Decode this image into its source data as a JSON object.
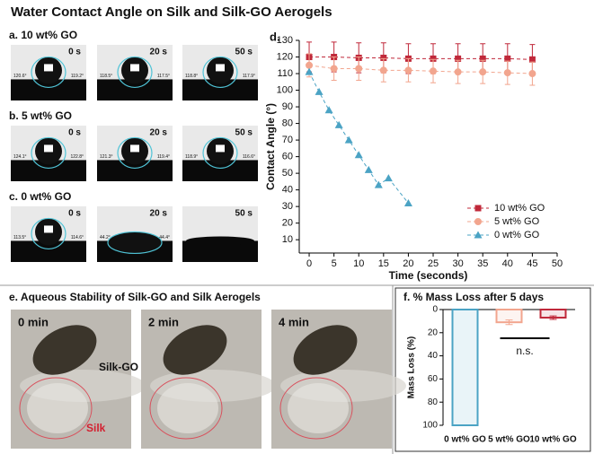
{
  "title": "Water Contact Angle on Silk and Silk-GO Aerogels",
  "contact_rows": [
    {
      "label": "a. 10 wt% GO",
      "photos": [
        {
          "time": "0 s",
          "left": "120.6°",
          "right": "119.2°"
        },
        {
          "time": "20 s",
          "left": "118.5°",
          "right": "117.5°"
        },
        {
          "time": "50 s",
          "left": "118.8°",
          "right": "117.9°"
        }
      ]
    },
    {
      "label": "b. 5 wt% GO",
      "photos": [
        {
          "time": "0 s",
          "left": "124.1°",
          "right": "122.8°"
        },
        {
          "time": "20 s",
          "left": "121.3°",
          "right": "119.4°"
        },
        {
          "time": "50 s",
          "left": "118.9°",
          "right": "116.6°"
        }
      ]
    },
    {
      "label": "c. 0 wt% GO",
      "photos": [
        {
          "time": "0 s",
          "left": "113.5°",
          "right": "114.6°"
        },
        {
          "time": "20 s",
          "left": "44.2°",
          "right": "44.4°"
        },
        {
          "time": "50 s"
        }
      ]
    }
  ],
  "stability": {
    "title": "e. Aqueous Stability of Silk-GO and Silk Aerogels",
    "photos": [
      "0 min",
      "2 min",
      "4 min"
    ],
    "silk_go": "Silk-GO",
    "silk": "Silk"
  },
  "chart_data": [
    {
      "type": "line",
      "title": "d.",
      "xlabel": "Time (seconds)",
      "ylabel": "Contact Angle (°)",
      "xlim": [
        -2,
        50
      ],
      "ylim": [
        2,
        130
      ],
      "xticks": [
        0,
        5,
        10,
        15,
        20,
        25,
        30,
        35,
        40,
        45,
        50
      ],
      "yticks": [
        10,
        20,
        30,
        40,
        50,
        60,
        70,
        80,
        90,
        100,
        110,
        120,
        130
      ],
      "legend": "lower right",
      "series": [
        {
          "name": "10 wt% GO",
          "color": "#c0283a",
          "marker": "square",
          "x": [
            0,
            5,
            10,
            15,
            20,
            25,
            30,
            35,
            40,
            45
          ],
          "values": [
            120,
            120,
            119.5,
            119.5,
            119,
            119,
            119,
            119,
            119,
            118.5
          ],
          "errors": [
            9,
            9,
            9,
            9,
            9,
            9,
            9,
            9,
            9,
            9
          ]
        },
        {
          "name": "5 wt% GO",
          "color": "#f2a58e",
          "marker": "circle",
          "x": [
            0,
            5,
            10,
            15,
            20,
            25,
            30,
            35,
            40,
            45
          ],
          "values": [
            115,
            113,
            113,
            112,
            112,
            111.5,
            111,
            111,
            110.5,
            110
          ],
          "errors": [
            7,
            7,
            7,
            7,
            7,
            7,
            7,
            7,
            7,
            7
          ]
        },
        {
          "name": "0 wt% GO",
          "color": "#4ba3c4",
          "marker": "triangle",
          "x": [
            0,
            2,
            4,
            6,
            8,
            10,
            12,
            14,
            16,
            20
          ],
          "values": [
            111,
            99,
            88,
            79,
            70,
            61,
            52,
            43,
            47,
            32
          ]
        }
      ]
    },
    {
      "type": "bar",
      "title": "f. % Mass Loss after 5 days",
      "ylabel": "Mass Loss (%)",
      "categories": [
        "0 wt% GO",
        "5 wt% GO",
        "10 wt% GO"
      ],
      "values": [
        100,
        11,
        7
      ],
      "errors": [
        0,
        2,
        1.5
      ],
      "colors": [
        "#4ba3c4",
        "#f2a58e",
        "#c0283a"
      ],
      "ylim": [
        0,
        100
      ],
      "yticks": [
        0,
        20,
        40,
        60,
        80,
        100
      ],
      "y_inverted": true,
      "annotation": "n.s."
    }
  ]
}
